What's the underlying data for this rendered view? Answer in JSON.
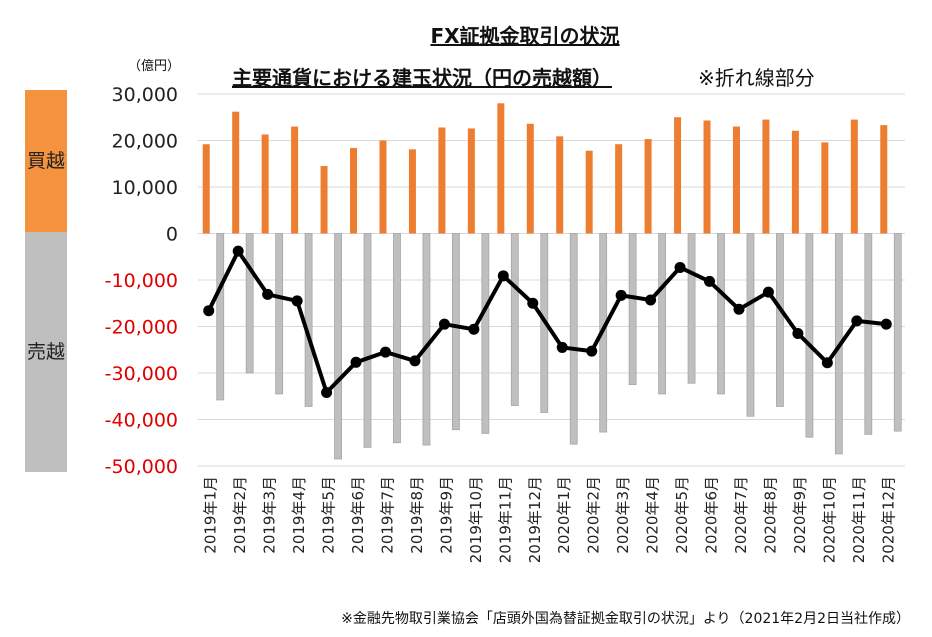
{
  "chart_data": {
    "type": "bar+line",
    "title": "FX証拠金取引の状況",
    "subtitle": "主要通貨における建玉状況（円の売越額）",
    "subtitle_note": "※折れ線部分",
    "unit": "（億円）",
    "band_labels": {
      "buy": "買越",
      "sell": "売越"
    },
    "ylim": [
      -50000,
      30000
    ],
    "yticks": [
      "30,000",
      "20,000",
      "10,000",
      "0",
      "-10,000",
      "-20,000",
      "-30,000",
      "-40,000",
      "-50,000"
    ],
    "yticks_values": [
      30000,
      20000,
      10000,
      0,
      -10000,
      -20000,
      -30000,
      -40000,
      -50000
    ],
    "grid": true,
    "categories": [
      "2019年1月",
      "2019年2月",
      "2019年3月",
      "2019年4月",
      "2019年5月",
      "2019年6月",
      "2019年7月",
      "2019年8月",
      "2019年9月",
      "2019年10月",
      "2019年11月",
      "2019年12月",
      "2020年1月",
      "2020年2月",
      "2020年3月",
      "2020年4月",
      "2020年5月",
      "2020年6月",
      "2020年7月",
      "2020年8月",
      "2020年9月",
      "2020年10月",
      "2020年11月",
      "2020年12月"
    ],
    "series": [
      {
        "type": "bar",
        "values": [
          19200,
          26200,
          21300,
          23000,
          14500,
          18400,
          20000,
          18100,
          22800,
          22600,
          28000,
          23600,
          20900,
          17800,
          19200,
          20300,
          25000,
          24300,
          23000,
          24500,
          22100,
          19600,
          24500,
          23300
        ]
      },
      {
        "type": "bar",
        "values": [
          -35800,
          -30000,
          -34500,
          -37200,
          -48500,
          -46000,
          -45000,
          -45500,
          -42200,
          -43000,
          -37000,
          -38500,
          -45300,
          -42700,
          -32500,
          -34500,
          -32200,
          -34500,
          -39300,
          -37200,
          -43800,
          -47400,
          -43200,
          -42500
        ]
      },
      {
        "type": "line",
        "values": [
          -16600,
          -3800,
          -13100,
          -14500,
          -34200,
          -27700,
          -25500,
          -27400,
          -19500,
          -20600,
          -9100,
          -15000,
          -24500,
          -25300,
          -13300,
          -14300,
          -7300,
          -10300,
          -16300,
          -12600,
          -21500,
          -27800,
          -18800,
          -19500
        ]
      }
    ],
    "colors": {
      "buy_bar": "#ed7d31",
      "sell_bar": "#bfbfbf",
      "sell_bar_edge": "#a6a6a6",
      "line": "#000000",
      "neg_tick": "#e00000",
      "pos_tick": "#222222",
      "grid": "#d9d9d9"
    }
  },
  "source_note": "※金融先物取引業協会「店頭外国為替証拠金取引の状況」より（2021年2月2日当社作成）"
}
